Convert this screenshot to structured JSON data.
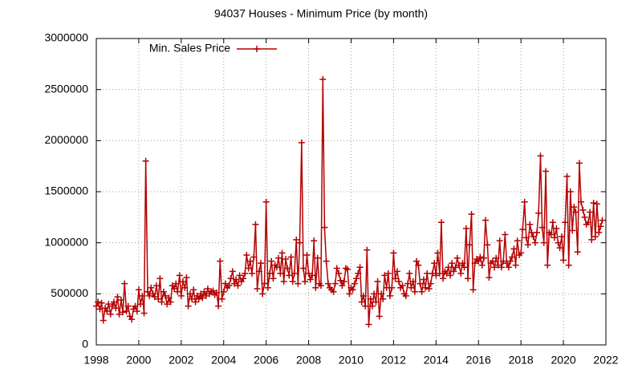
{
  "chart_data": {
    "type": "line",
    "title": "94037 Houses - Minimum Price (by month)",
    "xlim": [
      1998,
      2022
    ],
    "xticks": [
      1998,
      2000,
      2002,
      2004,
      2006,
      2008,
      2010,
      2012,
      2014,
      2016,
      2018,
      2020,
      2022
    ],
    "ylim": [
      0,
      3000000
    ],
    "yticks": [
      0,
      500000,
      1000000,
      1500000,
      2000000,
      2500000,
      3000000
    ],
    "grid": true,
    "legend": "top-left",
    "x": [
      1998.0,
      1998.08,
      1998.17,
      1998.25,
      1998.33,
      1998.42,
      1998.5,
      1998.58,
      1998.67,
      1998.75,
      1998.83,
      1998.92,
      1999.0,
      1999.08,
      1999.17,
      1999.25,
      1999.33,
      1999.42,
      1999.5,
      1999.58,
      1999.67,
      1999.75,
      1999.83,
      1999.92,
      2000.0,
      2000.08,
      2000.17,
      2000.25,
      2000.33,
      2000.42,
      2000.5,
      2000.58,
      2000.67,
      2000.75,
      2000.83,
      2000.92,
      2001.0,
      2001.08,
      2001.17,
      2001.25,
      2001.33,
      2001.42,
      2001.5,
      2001.58,
      2001.67,
      2001.75,
      2001.83,
      2001.92,
      2002.0,
      2002.08,
      2002.17,
      2002.25,
      2002.33,
      2002.42,
      2002.5,
      2002.58,
      2002.67,
      2002.75,
      2002.83,
      2002.92,
      2003.0,
      2003.08,
      2003.17,
      2003.25,
      2003.33,
      2003.42,
      2003.5,
      2003.58,
      2003.67,
      2003.75,
      2003.83,
      2003.92,
      2004.0,
      2004.08,
      2004.17,
      2004.25,
      2004.33,
      2004.42,
      2004.5,
      2004.58,
      2004.67,
      2004.75,
      2004.83,
      2004.92,
      2005.0,
      2005.08,
      2005.17,
      2005.25,
      2005.33,
      2005.42,
      2005.5,
      2005.58,
      2005.67,
      2005.75,
      2005.83,
      2005.92,
      2006.0,
      2006.08,
      2006.17,
      2006.25,
      2006.33,
      2006.42,
      2006.5,
      2006.58,
      2006.67,
      2006.75,
      2006.83,
      2006.92,
      2007.0,
      2007.08,
      2007.17,
      2007.25,
      2007.33,
      2007.42,
      2007.5,
      2007.58,
      2007.67,
      2007.75,
      2007.83,
      2007.92,
      2008.0,
      2008.08,
      2008.17,
      2008.25,
      2008.33,
      2008.42,
      2008.5,
      2008.58,
      2008.67,
      2008.75,
      2008.83,
      2008.92,
      2009.0,
      2009.08,
      2009.17,
      2009.25,
      2009.33,
      2009.42,
      2009.5,
      2009.58,
      2009.67,
      2009.75,
      2009.83,
      2009.92,
      2010.0,
      2010.08,
      2010.17,
      2010.25,
      2010.33,
      2010.42,
      2010.5,
      2010.58,
      2010.67,
      2010.75,
      2010.83,
      2010.92,
      2011.0,
      2011.08,
      2011.17,
      2011.25,
      2011.33,
      2011.42,
      2011.5,
      2011.58,
      2011.67,
      2011.75,
      2011.83,
      2011.92,
      2012.0,
      2012.08,
      2012.17,
      2012.25,
      2012.33,
      2012.42,
      2012.5,
      2012.58,
      2012.67,
      2012.75,
      2012.83,
      2012.92,
      2013.0,
      2013.08,
      2013.17,
      2013.25,
      2013.33,
      2013.42,
      2013.5,
      2013.58,
      2013.67,
      2013.75,
      2013.83,
      2013.92,
      2014.0,
      2014.08,
      2014.17,
      2014.25,
      2014.33,
      2014.42,
      2014.5,
      2014.58,
      2014.67,
      2014.75,
      2014.83,
      2014.92,
      2015.0,
      2015.08,
      2015.17,
      2015.25,
      2015.33,
      2015.42,
      2015.5,
      2015.58,
      2015.67,
      2015.75,
      2015.83,
      2015.92,
      2016.0,
      2016.08,
      2016.17,
      2016.25,
      2016.33,
      2016.42,
      2016.5,
      2016.58,
      2016.67,
      2016.75,
      2016.83,
      2016.92,
      2017.0,
      2017.08,
      2017.17,
      2017.25,
      2017.33,
      2017.42,
      2017.5,
      2017.58,
      2017.67,
      2017.75,
      2017.83,
      2017.92,
      2018.0,
      2018.08,
      2018.17,
      2018.25,
      2018.33,
      2018.42,
      2018.5,
      2018.58,
      2018.67,
      2018.75,
      2018.83,
      2018.92,
      2019.0,
      2019.08,
      2019.17,
      2019.25,
      2019.33,
      2019.42,
      2019.5,
      2019.58,
      2019.67,
      2019.75,
      2019.83,
      2019.92,
      2020.0,
      2020.08,
      2020.17,
      2020.25,
      2020.33,
      2020.42,
      2020.5,
      2020.58,
      2020.67,
      2020.75,
      2020.83,
      2020.92,
      2021.0,
      2021.08,
      2021.17,
      2021.25,
      2021.33,
      2021.42,
      2021.5,
      2021.58,
      2021.67,
      2021.75,
      2021.83
    ],
    "series": [
      {
        "name": "Min. Sales Price",
        "color": "#b40000",
        "values": [
          380000,
          420000,
          350000,
          410000,
          240000,
          360000,
          330000,
          400000,
          300000,
          380000,
          420000,
          360000,
          470000,
          300000,
          440000,
          320000,
          600000,
          330000,
          380000,
          280000,
          250000,
          350000,
          380000,
          330000,
          540000,
          400000,
          480000,
          310000,
          1800000,
          520000,
          480000,
          560000,
          500000,
          470000,
          580000,
          450000,
          650000,
          420000,
          520000,
          480000,
          400000,
          460000,
          420000,
          580000,
          550000,
          600000,
          520000,
          680000,
          480000,
          620000,
          560000,
          660000,
          380000,
          500000,
          450000,
          540000,
          420000,
          480000,
          450000,
          500000,
          460000,
          520000,
          480000,
          550000,
          500000,
          520000,
          530000,
          490000,
          510000,
          380000,
          820000,
          450000,
          520000,
          600000,
          560000,
          580000,
          650000,
          720000,
          600000,
          640000,
          580000,
          680000,
          620000,
          650000,
          700000,
          880000,
          750000,
          820000,
          700000,
          860000,
          1180000,
          550000,
          720000,
          800000,
          500000,
          600000,
          1400000,
          560000,
          700000,
          820000,
          650000,
          780000,
          760000,
          850000,
          700000,
          900000,
          620000,
          840000,
          750000,
          680000,
          860000,
          620000,
          700000,
          1030000,
          600000,
          1000000,
          1980000,
          750000,
          620000,
          880000,
          700000,
          640000,
          680000,
          1020000,
          560000,
          850000,
          600000,
          580000,
          2600000,
          1150000,
          820000,
          600000,
          560000,
          540000,
          520000,
          600000,
          750000,
          700000,
          630000,
          580000,
          620000,
          750000,
          740000,
          500000,
          560000,
          540000,
          600000,
          650000,
          700000,
          760000,
          420000,
          480000,
          380000,
          930000,
          200000,
          450000,
          380000,
          500000,
          420000,
          620000,
          280000,
          500000,
          450000,
          680000,
          560000,
          700000,
          480000,
          560000,
          900000,
          650000,
          720000,
          620000,
          560000,
          580000,
          500000,
          480000,
          600000,
          700000,
          560000,
          620000,
          520000,
          820000,
          780000,
          600000,
          520000,
          640000,
          560000,
          700000,
          550000,
          600000,
          700000,
          800000,
          680000,
          900000,
          700000,
          1200000,
          650000,
          720000,
          700000,
          760000,
          680000,
          800000,
          720000,
          760000,
          850000,
          780000,
          700000,
          800000,
          760000,
          1140000,
          650000,
          980000,
          1280000,
          540000,
          800000,
          840000,
          820000,
          860000,
          780000,
          850000,
          1220000,
          980000,
          660000,
          800000,
          820000,
          760000,
          850000,
          780000,
          1020000,
          760000,
          820000,
          1080000,
          800000,
          760000,
          820000,
          860000,
          940000,
          780000,
          1020000,
          880000,
          900000,
          1130000,
          1400000,
          1050000,
          980000,
          1180000,
          1100000,
          1060000,
          1000000,
          1100000,
          1290000,
          1850000,
          1150000,
          1000000,
          1700000,
          780000,
          1100000,
          1080000,
          1200000,
          1050000,
          1140000,
          1000000,
          950000,
          1060000,
          830000,
          1200000,
          1650000,
          780000,
          1500000,
          1120000,
          1350000,
          1300000,
          910000,
          1780000,
          1400000,
          1320000,
          1250000,
          1180000,
          1200000,
          1300000,
          1030000,
          1390000,
          1060000,
          1380000,
          1100000,
          1160000,
          1220000
        ]
      }
    ]
  }
}
